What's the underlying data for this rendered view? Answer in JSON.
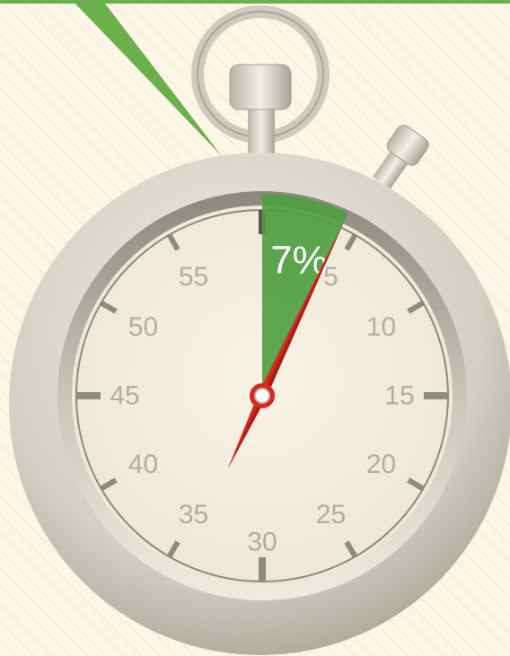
{
  "percent": {
    "value": 7,
    "label": "7%"
  },
  "dial_numbers": [
    5,
    10,
    15,
    20,
    25,
    30,
    35,
    40,
    45,
    50,
    55
  ]
}
